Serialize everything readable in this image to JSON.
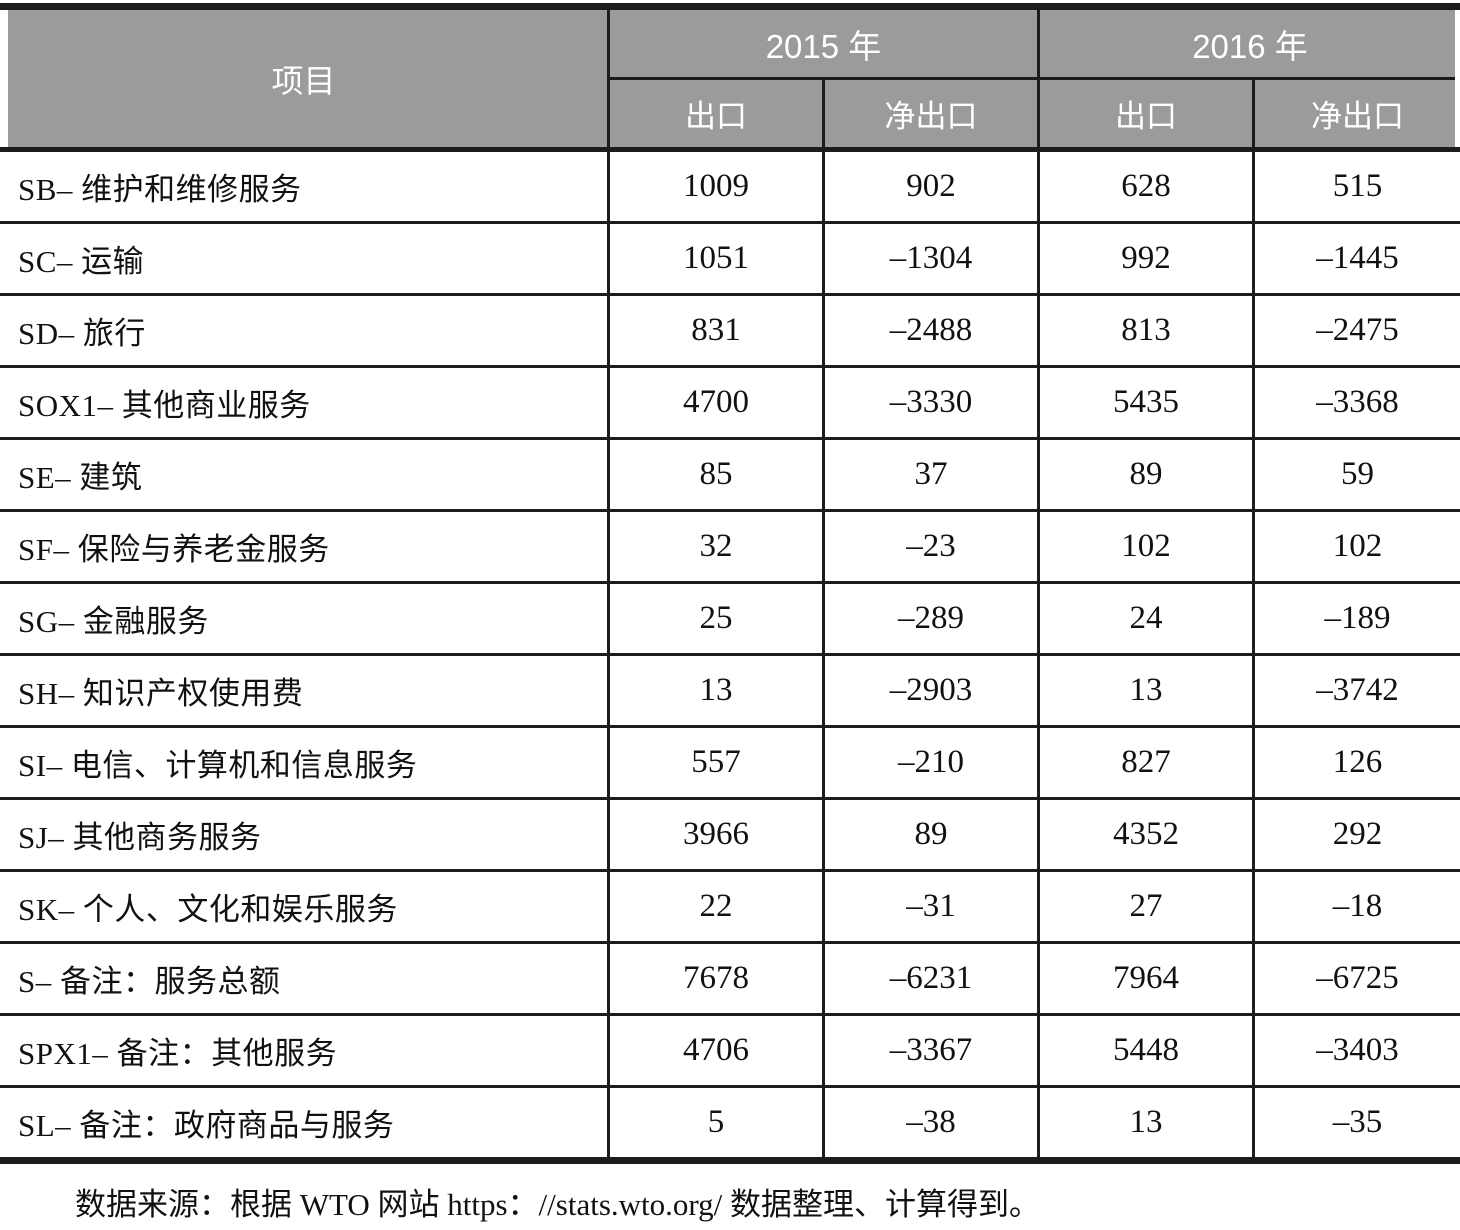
{
  "table": {
    "header": {
      "item": "项目",
      "groups": [
        {
          "year": "2015 年",
          "cols": [
            "出口",
            "净出口"
          ]
        },
        {
          "year": "2016 年",
          "cols": [
            "出口",
            "净出口"
          ]
        }
      ]
    },
    "rows": [
      {
        "label": "SB– 维护和维修服务",
        "values": [
          "1009",
          "902",
          "628",
          "515"
        ]
      },
      {
        "label": "SC– 运输",
        "values": [
          "1051",
          "–1304",
          "992",
          "–1445"
        ]
      },
      {
        "label": "SD– 旅行",
        "values": [
          "831",
          "–2488",
          "813",
          "–2475"
        ]
      },
      {
        "label": "SOX1– 其他商业服务",
        "values": [
          "4700",
          "–3330",
          "5435",
          "–3368"
        ]
      },
      {
        "label": "SE– 建筑",
        "values": [
          "85",
          "37",
          "89",
          "59"
        ]
      },
      {
        "label": "SF– 保险与养老金服务",
        "values": [
          "32",
          "–23",
          "102",
          "102"
        ]
      },
      {
        "label": "SG– 金融服务",
        "values": [
          "25",
          "–289",
          "24",
          "–189"
        ]
      },
      {
        "label": "SH– 知识产权使用费",
        "values": [
          "13",
          "–2903",
          "13",
          "–3742"
        ]
      },
      {
        "label": "SI– 电信、计算机和信息服务",
        "values": [
          "557",
          "–210",
          "827",
          "126"
        ]
      },
      {
        "label": "SJ– 其他商务服务",
        "values": [
          "3966",
          "89",
          "4352",
          "292"
        ]
      },
      {
        "label": "SK– 个人、文化和娱乐服务",
        "values": [
          "22",
          "–31",
          "27",
          "–18"
        ]
      },
      {
        "label": "S– 备注：服务总额",
        "values": [
          "7678",
          "–6231",
          "7964",
          "–6725"
        ]
      },
      {
        "label": "SPX1– 备注：其他服务",
        "values": [
          "4706",
          "–3367",
          "5448",
          "–3403"
        ]
      },
      {
        "label": "SL– 备注：政府商品与服务",
        "values": [
          "5",
          "–38",
          "13",
          "–35"
        ]
      }
    ]
  },
  "source_note": "数据来源：根据 WTO 网站 https：//stats.wto.org/ 数据整理、计算得到。",
  "colors": {
    "header_bg": "#9b9b9b",
    "header_text": "#ffffff",
    "border": "#1c1c1c",
    "body_text": "#111111",
    "page_bg": "#ffffff"
  }
}
